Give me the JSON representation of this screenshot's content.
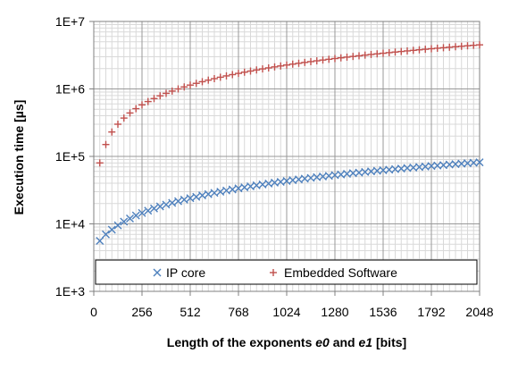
{
  "chart_data": {
    "type": "scatter",
    "title": "",
    "xlabel": {
      "prefix": "Length of the exponents ",
      "var1": "e0",
      "mid": " and ",
      "var2": "e1",
      "suffix": " [bits]"
    },
    "ylabel": "Execution time [µs]",
    "x_ticks": [
      "0",
      "256",
      "512",
      "768",
      "1024",
      "1280",
      "1536",
      "1792",
      "2048"
    ],
    "y_ticks": [
      "1E+3",
      "1E+4",
      "1E+5",
      "1E+6",
      "1E+7"
    ],
    "xlim": [
      0,
      2048
    ],
    "ylim": [
      1000,
      10000000
    ],
    "y_scale": "log",
    "grid": true,
    "legend_position": "bottom",
    "x": [
      32,
      64,
      96,
      128,
      160,
      192,
      224,
      256,
      288,
      320,
      352,
      384,
      416,
      448,
      480,
      512,
      544,
      576,
      608,
      640,
      672,
      704,
      736,
      768,
      800,
      832,
      864,
      896,
      928,
      960,
      992,
      1024,
      1056,
      1088,
      1120,
      1152,
      1184,
      1216,
      1248,
      1280,
      1312,
      1344,
      1376,
      1408,
      1440,
      1472,
      1504,
      1536,
      1568,
      1600,
      1632,
      1664,
      1696,
      1728,
      1760,
      1792,
      1824,
      1856,
      1888,
      1920,
      1952,
      1984,
      2016,
      2048
    ],
    "series": [
      {
        "name": "IP core",
        "marker": "x",
        "color": "#4f81bd",
        "values": [
          5600,
          7000,
          8200,
          9500,
          10800,
          12000,
          13300,
          14500,
          15700,
          16900,
          18100,
          19300,
          20500,
          21700,
          22900,
          24000,
          25200,
          26400,
          27600,
          28800,
          30000,
          31200,
          32400,
          33600,
          34800,
          36000,
          37200,
          38400,
          39600,
          40800,
          42000,
          43200,
          44400,
          45600,
          46800,
          48000,
          49200,
          50400,
          51600,
          52800,
          54000,
          55200,
          56400,
          57600,
          58800,
          60000,
          61200,
          62400,
          63600,
          64800,
          66000,
          67200,
          68400,
          69600,
          70800,
          72000,
          73200,
          74400,
          75600,
          76800,
          78000,
          79200,
          80400,
          81600
        ]
      },
      {
        "name": "Embedded Software",
        "marker": "+",
        "color": "#c0504d",
        "values": [
          80000,
          150000,
          230000,
          300000,
          370000,
          440000,
          510000,
          580000,
          650000,
          720000,
          790000,
          860000,
          930000,
          1000000,
          1070000,
          1140000,
          1210000,
          1280000,
          1350000,
          1420000,
          1490000,
          1560000,
          1630000,
          1700000,
          1770000,
          1840000,
          1910000,
          1980000,
          2050000,
          2120000,
          2190000,
          2260000,
          2330000,
          2400000,
          2470000,
          2540000,
          2610000,
          2680000,
          2750000,
          2820000,
          2890000,
          2960000,
          3030000,
          3100000,
          3170000,
          3240000,
          3310000,
          3380000,
          3450000,
          3520000,
          3590000,
          3660000,
          3730000,
          3800000,
          3870000,
          3940000,
          4010000,
          4080000,
          4150000,
          4220000,
          4290000,
          4360000,
          4430000,
          4500000
        ]
      }
    ]
  }
}
